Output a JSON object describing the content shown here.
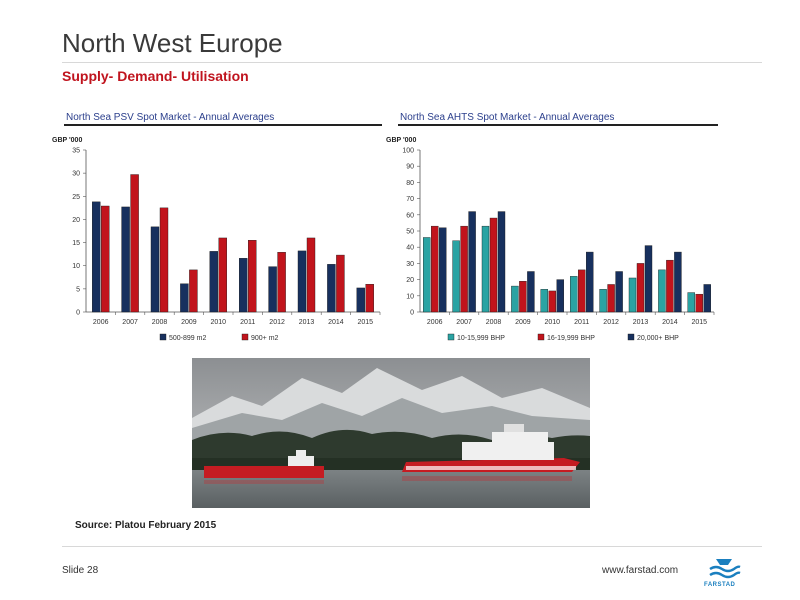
{
  "slide": {
    "title": "North West Europe",
    "subtitle": "Supply- Demand- Utilisation",
    "source": "Source: Platou February 2015",
    "slide_number": "Slide 28",
    "website": "www.farstad.com",
    "logo_text": "FARSTAD"
  },
  "colors": {
    "navy": "#17305e",
    "red": "#c1141c",
    "teal": "#2aa3a3",
    "title_red": "#c0141e",
    "header_blue": "#2b3f8c"
  },
  "chart_data": [
    {
      "type": "bar",
      "title": "North Sea PSV Spot Market - Annual Averages",
      "ylabel": "GBP '000",
      "categories": [
        "2006",
        "2007",
        "2008",
        "2009",
        "2010",
        "2011",
        "2012",
        "2013",
        "2014",
        "2015"
      ],
      "ylim": [
        0,
        35
      ],
      "yticks": [
        0,
        5,
        10,
        15,
        20,
        25,
        30,
        35
      ],
      "grid": false,
      "legend": "bottom",
      "series": [
        {
          "name": "500-899 m2",
          "color": "#17305e",
          "values": [
            23.8,
            22.7,
            18.4,
            6.1,
            13.1,
            11.6,
            9.8,
            13.2,
            10.3,
            5.2
          ]
        },
        {
          "name": "900+ m2",
          "color": "#c1141c",
          "values": [
            22.9,
            29.7,
            22.5,
            9.1,
            16.0,
            15.5,
            12.9,
            16.0,
            12.3,
            6.0
          ]
        }
      ]
    },
    {
      "type": "bar",
      "title": "North Sea AHTS Spot Market - Annual Averages",
      "ylabel": "GBP '000",
      "categories": [
        "2006",
        "2007",
        "2008",
        "2009",
        "2010",
        "2011",
        "2012",
        "2013",
        "2014",
        "2015"
      ],
      "ylim": [
        0,
        100
      ],
      "yticks": [
        0,
        10,
        20,
        30,
        40,
        50,
        60,
        70,
        80,
        90,
        100
      ],
      "grid": false,
      "legend": "bottom",
      "series": [
        {
          "name": "10-15,999 BHP",
          "color": "#2aa3a3",
          "values": [
            46,
            44,
            53,
            16,
            14,
            22,
            14,
            21,
            26,
            12
          ]
        },
        {
          "name": "16-19,999 BHP",
          "color": "#c1141c",
          "values": [
            53,
            53,
            58,
            19,
            13,
            26,
            17,
            30,
            32,
            11
          ]
        },
        {
          "name": "20,000+ BHP",
          "color": "#17305e",
          "values": [
            52,
            62,
            62,
            25,
            20,
            37,
            25,
            41,
            37,
            17
          ]
        }
      ]
    }
  ]
}
